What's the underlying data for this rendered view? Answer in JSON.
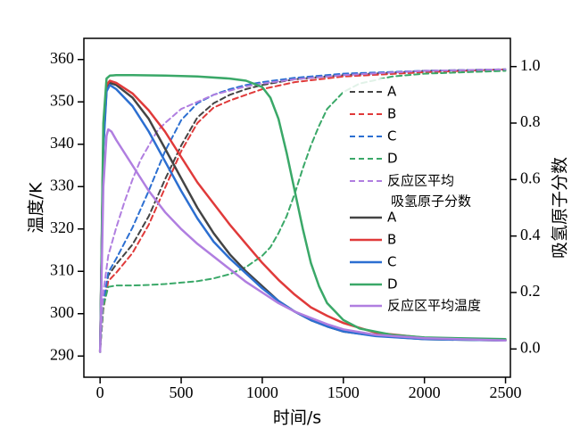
{
  "chart_data": {
    "type": "line",
    "xlabel": "时间/s",
    "ylabel_left": "温度/K",
    "ylabel_right": "吸氢原子分数",
    "xlim": [
      -100,
      2530
    ],
    "ylim_left": [
      285,
      365
    ],
    "ylim_right": [
      -0.1,
      1.1
    ],
    "x_ticks": [
      0,
      500,
      1000,
      1500,
      2000,
      2500
    ],
    "y_ticks_left": [
      290,
      300,
      310,
      320,
      330,
      340,
      350,
      360
    ],
    "y_ticks_right": [
      0.0,
      0.2,
      0.4,
      0.6,
      0.8,
      1.0
    ],
    "grid": false,
    "legend_position": "right",
    "colors": {
      "A": "#444444",
      "B": "#e03a3a",
      "C": "#2c6fd1",
      "D": "#3aa868",
      "avg": "#b07ee0"
    },
    "legend_fraction_title": [
      "反应区平均",
      "吸氢原子分数"
    ],
    "legend_dashed": [
      "A",
      "B",
      "C",
      "D"
    ],
    "legend_solid": [
      "A",
      "B",
      "C",
      "D",
      "反应区平均温度"
    ],
    "series": [
      {
        "name": "A",
        "axis": "left",
        "style": "solid",
        "color": "#444444",
        "x": [
          0,
          20,
          40,
          60,
          100,
          200,
          300,
          400,
          500,
          600,
          700,
          800,
          900,
          1000,
          1100,
          1200,
          1300,
          1400,
          1500,
          1700,
          2000,
          2500
        ],
        "y": [
          291,
          340,
          353,
          354.5,
          354,
          351,
          346,
          339,
          332,
          325,
          319,
          314,
          310,
          306.5,
          303,
          300.5,
          298.5,
          297,
          295.8,
          294.8,
          294,
          293.7
        ]
      },
      {
        "name": "B",
        "axis": "left",
        "style": "solid",
        "color": "#e03a3a",
        "x": [
          0,
          20,
          40,
          60,
          100,
          200,
          300,
          400,
          500,
          600,
          700,
          800,
          900,
          1000,
          1100,
          1200,
          1300,
          1400,
          1500,
          1700,
          2000,
          2500
        ],
        "y": [
          291,
          341,
          354,
          355,
          354.5,
          352,
          348,
          343,
          337,
          331,
          326,
          321,
          316.5,
          312,
          308,
          304.5,
          301.5,
          299.5,
          297.8,
          295.5,
          294.3,
          293.8
        ]
      },
      {
        "name": "C",
        "axis": "left",
        "style": "solid",
        "color": "#2c6fd1",
        "x": [
          0,
          20,
          40,
          60,
          100,
          200,
          300,
          400,
          500,
          600,
          700,
          800,
          900,
          1000,
          1100,
          1200,
          1300,
          1400,
          1500,
          1700,
          2000,
          2500
        ],
        "y": [
          291,
          339,
          352.5,
          354,
          353,
          349,
          343,
          336,
          329,
          322.5,
          317,
          313,
          309.5,
          306,
          303,
          300.5,
          298.5,
          297,
          295.8,
          294.7,
          294,
          293.7
        ]
      },
      {
        "name": "D",
        "axis": "left",
        "style": "solid",
        "color": "#3aa868",
        "x": [
          0,
          20,
          40,
          60,
          100,
          200,
          400,
          600,
          800,
          900,
          1000,
          1050,
          1100,
          1150,
          1200,
          1250,
          1300,
          1350,
          1400,
          1500,
          1600,
          1800,
          2000,
          2500
        ],
        "y": [
          291,
          345,
          355.5,
          356.2,
          356.3,
          356.3,
          356.2,
          356,
          355.5,
          355,
          353.5,
          351,
          346,
          338,
          329,
          320,
          312,
          306.5,
          302.5,
          298.5,
          296.5,
          295,
          294.4,
          294
        ]
      },
      {
        "name": "反应区平均温度",
        "axis": "left",
        "style": "solid",
        "color": "#b07ee0",
        "x": [
          0,
          20,
          40,
          50,
          70,
          100,
          200,
          300,
          400,
          500,
          600,
          700,
          800,
          900,
          1000,
          1100,
          1200,
          1300,
          1400,
          1500,
          1700,
          2000,
          2500
        ],
        "y": [
          291,
          330,
          342,
          343.5,
          343,
          341,
          335,
          329,
          324,
          320,
          316.5,
          313.5,
          310.5,
          307.5,
          305,
          302.5,
          300.5,
          299,
          297.5,
          296.3,
          295,
          294.2,
          293.7
        ]
      },
      {
        "name": "A",
        "axis": "right",
        "style": "dashed",
        "color": "#444444",
        "x": [
          0,
          20,
          50,
          100,
          200,
          300,
          400,
          500,
          600,
          700,
          800,
          900,
          1000,
          1200,
          1500,
          2000,
          2500
        ],
        "y": [
          0.0,
          0.15,
          0.26,
          0.3,
          0.37,
          0.47,
          0.6,
          0.72,
          0.82,
          0.87,
          0.9,
          0.92,
          0.935,
          0.955,
          0.97,
          0.985,
          0.99
        ]
      },
      {
        "name": "B",
        "axis": "right",
        "style": "dashed",
        "color": "#e03a3a",
        "x": [
          0,
          20,
          50,
          100,
          200,
          300,
          400,
          500,
          600,
          700,
          800,
          900,
          1000,
          1200,
          1500,
          2000,
          2500
        ],
        "y": [
          0.0,
          0.14,
          0.24,
          0.27,
          0.34,
          0.44,
          0.57,
          0.7,
          0.8,
          0.855,
          0.88,
          0.9,
          0.92,
          0.945,
          0.965,
          0.98,
          0.99
        ]
      },
      {
        "name": "C",
        "axis": "right",
        "style": "dashed",
        "color": "#2c6fd1",
        "x": [
          0,
          20,
          50,
          100,
          200,
          300,
          400,
          500,
          600,
          700,
          800,
          900,
          1000,
          1200,
          1500,
          2000,
          2500
        ],
        "y": [
          0.0,
          0.16,
          0.27,
          0.32,
          0.43,
          0.56,
          0.7,
          0.81,
          0.87,
          0.9,
          0.92,
          0.935,
          0.945,
          0.96,
          0.975,
          0.985,
          0.99
        ]
      },
      {
        "name": "D",
        "axis": "right",
        "style": "dashed",
        "color": "#3aa868",
        "x": [
          0,
          20,
          50,
          100,
          200,
          300,
          400,
          500,
          600,
          700,
          800,
          900,
          1000,
          1050,
          1100,
          1150,
          1200,
          1250,
          1300,
          1350,
          1400,
          1500,
          1600,
          1800,
          2000,
          2500
        ],
        "y": [
          0.0,
          0.15,
          0.22,
          0.225,
          0.225,
          0.227,
          0.23,
          0.235,
          0.24,
          0.25,
          0.265,
          0.29,
          0.33,
          0.36,
          0.41,
          0.47,
          0.55,
          0.64,
          0.72,
          0.79,
          0.85,
          0.91,
          0.94,
          0.965,
          0.975,
          0.985
        ]
      },
      {
        "name": "反应区平均吸氢原子分数",
        "axis": "right",
        "style": "dashed",
        "color": "#b07ee0",
        "x": [
          0,
          20,
          50,
          100,
          150,
          200,
          250,
          300,
          350,
          400,
          500,
          600,
          700,
          800,
          900,
          1000,
          1200,
          1500,
          2000,
          2500
        ],
        "y": [
          0.0,
          0.2,
          0.33,
          0.43,
          0.52,
          0.6,
          0.67,
          0.72,
          0.77,
          0.8,
          0.85,
          0.875,
          0.9,
          0.915,
          0.93,
          0.94,
          0.955,
          0.97,
          0.985,
          0.99
        ]
      }
    ]
  }
}
